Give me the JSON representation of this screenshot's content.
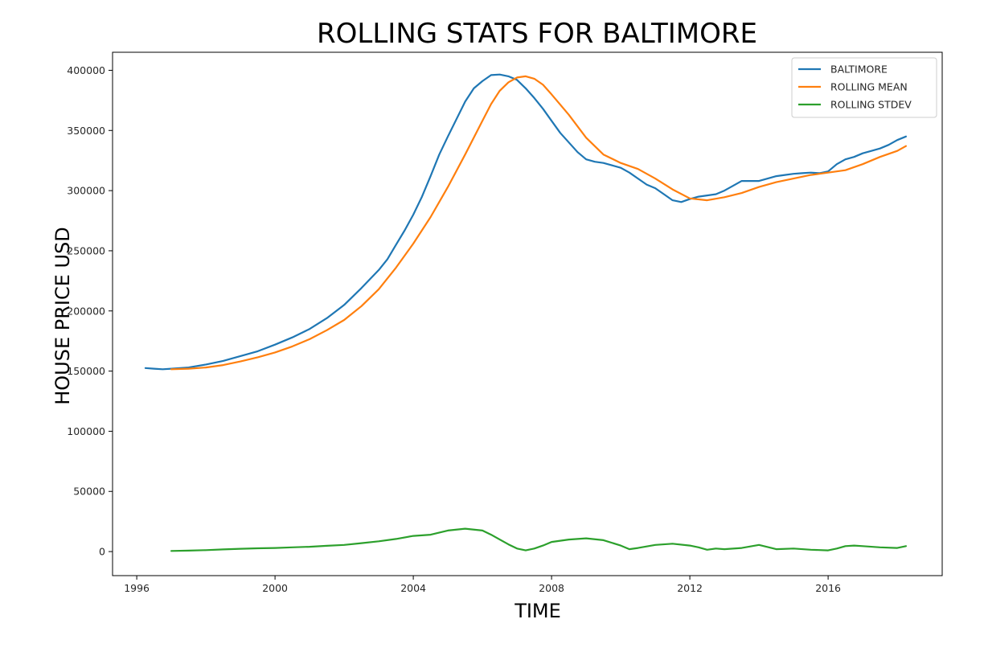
{
  "chart_data": {
    "type": "line",
    "title": "ROLLING STATS FOR BALTIMORE",
    "xlabel": "TIME",
    "ylabel": "HOUSE PRICE USD",
    "xlim": [
      1995.3,
      2019.3
    ],
    "ylim": [
      -20000,
      415000
    ],
    "xticks": [
      1996,
      2000,
      2004,
      2008,
      2012,
      2016
    ],
    "yticks": [
      0,
      50000,
      100000,
      150000,
      200000,
      250000,
      300000,
      350000,
      400000
    ],
    "grid": false,
    "legend_position": "top-right",
    "series": [
      {
        "name": "BALTIMORE",
        "color": "#1f77b4",
        "x": [
          1996.25,
          1996.5,
          1996.75,
          1997.0,
          1997.5,
          1998.0,
          1998.5,
          1999.0,
          1999.5,
          2000.0,
          2000.5,
          2001.0,
          2001.5,
          2002.0,
          2002.5,
          2003.0,
          2003.25,
          2003.5,
          2003.75,
          2004.0,
          2004.25,
          2004.5,
          2004.75,
          2005.0,
          2005.5,
          2005.75,
          2006.0,
          2006.25,
          2006.5,
          2006.75,
          2007.0,
          2007.25,
          2007.5,
          2007.75,
          2008.0,
          2008.25,
          2008.5,
          2008.75,
          2009.0,
          2009.25,
          2009.5,
          2009.75,
          2010.0,
          2010.25,
          2010.5,
          2010.75,
          2011.0,
          2011.25,
          2011.5,
          2011.75,
          2012.0,
          2012.25,
          2012.5,
          2012.75,
          2013.0,
          2013.25,
          2013.5,
          2013.75,
          2014.0,
          2014.25,
          2014.5,
          2014.75,
          2015.0,
          2015.25,
          2015.5,
          2015.75,
          2016.0,
          2016.25,
          2016.5,
          2016.75,
          2017.0,
          2017.25,
          2017.5,
          2017.75,
          2018.0,
          2018.25
        ],
        "values": [
          152500,
          152000,
          151500,
          152000,
          153000,
          155500,
          158500,
          162500,
          166500,
          172000,
          178000,
          185000,
          194000,
          205000,
          219000,
          234000,
          243000,
          255000,
          267000,
          280000,
          295000,
          312000,
          330000,
          345000,
          374000,
          385000,
          391000,
          396000,
          396500,
          395000,
          392000,
          385000,
          377000,
          368000,
          358000,
          348000,
          340000,
          332000,
          326000,
          324000,
          323000,
          321000,
          319000,
          315000,
          310000,
          305000,
          302000,
          297000,
          292000,
          290500,
          293000,
          295000,
          296000,
          297000,
          300000,
          304000,
          308000,
          308000,
          308000,
          310000,
          312000,
          313000,
          314000,
          314500,
          315000,
          314500,
          316000,
          322000,
          326000,
          328000,
          331000,
          333000,
          335000,
          338000,
          342000,
          345000
        ]
      },
      {
        "name": "ROLLING MEAN",
        "color": "#ff7f0e",
        "x": [
          1997.0,
          1997.5,
          1998.0,
          1998.5,
          1999.0,
          1999.5,
          2000.0,
          2000.5,
          2001.0,
          2001.5,
          2002.0,
          2002.5,
          2003.0,
          2003.5,
          2004.0,
          2004.5,
          2005.0,
          2005.5,
          2006.0,
          2006.25,
          2006.5,
          2006.75,
          2007.0,
          2007.25,
          2007.5,
          2007.75,
          2008.0,
          2008.5,
          2009.0,
          2009.5,
          2010.0,
          2010.5,
          2011.0,
          2011.5,
          2012.0,
          2012.5,
          2013.0,
          2013.5,
          2014.0,
          2014.5,
          2015.0,
          2015.5,
          2016.0,
          2016.5,
          2017.0,
          2017.5,
          2018.0,
          2018.25
        ],
        "values": [
          151500,
          152000,
          153000,
          155000,
          158000,
          161500,
          165500,
          170500,
          176500,
          184000,
          192500,
          204000,
          218000,
          236000,
          256000,
          278000,
          303000,
          330000,
          358000,
          372000,
          383000,
          390000,
          394000,
          395000,
          393000,
          388000,
          380000,
          363000,
          344000,
          330000,
          323000,
          318000,
          310000,
          301000,
          293500,
          292000,
          294500,
          298000,
          303000,
          307000,
          310000,
          313000,
          315000,
          317000,
          322000,
          328000,
          333000,
          337000
        ]
      },
      {
        "name": "ROLLING STDEV",
        "color": "#2ca02c",
        "x": [
          1997.0,
          1997.5,
          1998.0,
          1998.5,
          1999.0,
          1999.5,
          2000.0,
          2000.5,
          2001.0,
          2001.5,
          2002.0,
          2002.5,
          2003.0,
          2003.5,
          2004.0,
          2004.5,
          2005.0,
          2005.5,
          2006.0,
          2006.25,
          2006.5,
          2006.75,
          2007.0,
          2007.25,
          2007.5,
          2007.75,
          2008.0,
          2008.5,
          2009.0,
          2009.5,
          2010.0,
          2010.25,
          2010.5,
          2011.0,
          2011.5,
          2012.0,
          2012.25,
          2012.5,
          2012.75,
          2013.0,
          2013.5,
          2014.0,
          2014.5,
          2015.0,
          2015.5,
          2016.0,
          2016.25,
          2016.5,
          2016.75,
          2017.0,
          2017.5,
          2018.0,
          2018.25
        ],
        "values": [
          500,
          800,
          1200,
          1800,
          2300,
          2700,
          3000,
          3500,
          4000,
          4800,
          5500,
          7000,
          8500,
          10500,
          13000,
          14000,
          17500,
          19000,
          17500,
          14000,
          10000,
          6000,
          2500,
          1000,
          2500,
          5000,
          8000,
          10000,
          11000,
          9500,
          5000,
          2000,
          3000,
          5500,
          6500,
          5000,
          3500,
          1500,
          2500,
          2000,
          3000,
          5500,
          2000,
          2500,
          1500,
          1000,
          2500,
          4500,
          5000,
          4500,
          3500,
          3000,
          4500
        ]
      }
    ]
  }
}
